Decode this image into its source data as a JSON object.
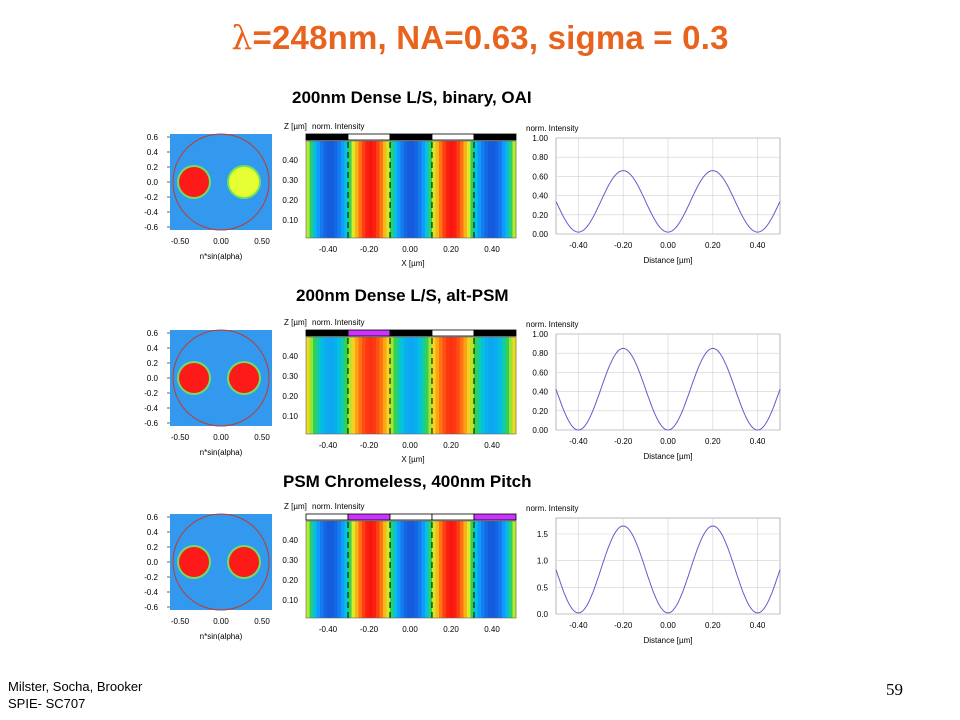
{
  "slide": {
    "title_symbol": "λ",
    "title_rest": "=248nm, NA=0.63, sigma = 0.3",
    "footer_line1": "Milster, Socha, Brooker",
    "footer_line2": "SPIE- SC707",
    "page_number": "59"
  },
  "rows": [
    {
      "title": "200nm Dense L/S, binary, OAI",
      "pupil": {
        "yticks": [
          "0.6",
          "0.4",
          "0.2",
          "0.0",
          "-0.2",
          "-0.4",
          "-0.6"
        ],
        "xticks": [
          "-0.50",
          "0.00",
          "0.50"
        ],
        "xlabel": "n*sin(alpha)",
        "poles": [
          "#ff1a1a",
          "#e6ff33"
        ]
      },
      "aerial": {
        "zlabel": "Z [µm]",
        "clabel": "norm. Intensity",
        "yticks": [
          "0.40",
          "0.30",
          "0.20",
          "0.10"
        ],
        "xticks": [
          "-0.40",
          "-0.20",
          "0.00",
          "0.20",
          "0.40"
        ],
        "xlabel": "X [µm]",
        "mask": [
          "#000000",
          "#ffffff",
          "#000000",
          "#ffffff",
          "#000000"
        ],
        "palette": "binary"
      },
      "chart_data": {
        "type": "line",
        "ylabel": "norm. Intensity",
        "xlabel": "Distance [µm]",
        "yticks": [
          "1.00",
          "0.80",
          "0.60",
          "0.40",
          "0.20",
          "0.00"
        ],
        "ylim": [
          0,
          1.0
        ],
        "xlim": [
          -0.5,
          0.5
        ],
        "xticks": [
          "-0.40",
          "-0.20",
          "0.00",
          "0.20",
          "0.40"
        ],
        "min": 0.02,
        "max": 0.66,
        "period": 0.4,
        "peak": -0.2,
        "grid": true
      }
    },
    {
      "title": "200nm Dense L/S, alt-PSM",
      "pupil": {
        "yticks": [
          "0.6",
          "0.4",
          "0.2",
          "0.0",
          "-0.2",
          "-0.4",
          "-0.6"
        ],
        "xticks": [
          "-0.50",
          "0.00",
          "0.50"
        ],
        "xlabel": "n*sin(alpha)",
        "poles": [
          "#ff1a1a",
          "#ff1a1a"
        ]
      },
      "aerial": {
        "zlabel": "Z [µm]",
        "clabel": "norm. Intensity",
        "yticks": [
          "0.40",
          "0.30",
          "0.20",
          "0.10"
        ],
        "xticks": [
          "-0.40",
          "-0.20",
          "0.00",
          "0.20",
          "0.40"
        ],
        "xlabel": "X [µm]",
        "mask": [
          "#000000",
          "#cc33ff",
          "#000000",
          "#ffffff",
          "#000000"
        ],
        "palette": "psm"
      },
      "chart_data": {
        "type": "line",
        "ylabel": "norm. Intensity",
        "xlabel": "Distance [µm]",
        "yticks": [
          "1.00",
          "0.80",
          "0.60",
          "0.40",
          "0.20",
          "0.00"
        ],
        "ylim": [
          0,
          1.0
        ],
        "xlim": [
          -0.5,
          0.5
        ],
        "xticks": [
          "-0.40",
          "-0.20",
          "0.00",
          "0.20",
          "0.40"
        ],
        "min": 0.0,
        "max": 0.85,
        "period": 0.4,
        "peak": -0.2,
        "grid": true
      }
    },
    {
      "title": "PSM Chromeless, 400nm Pitch",
      "pupil": {
        "yticks": [
          "0.6",
          "0.4",
          "0.2",
          "0.0",
          "-0.2",
          "-0.4",
          "-0.6"
        ],
        "xticks": [
          "-0.50",
          "0.00",
          "0.50"
        ],
        "xlabel": "n*sin(alpha)",
        "poles": [
          "#ff1a1a",
          "#ff1a1a"
        ]
      },
      "aerial": {
        "zlabel": "Z [µm]",
        "clabel": "norm. Intensity",
        "yticks": [
          "0.40",
          "0.30",
          "0.20",
          "0.10"
        ],
        "xticks": [
          "-0.40",
          "-0.20",
          "0.00",
          "0.20",
          "0.40"
        ],
        "xlabel": "",
        "mask": [
          "#ffffff",
          "#cc33ff",
          "#ffffff",
          "#ffffff",
          "#cc33ff"
        ],
        "palette": "chromeless"
      },
      "chart_data": {
        "type": "line",
        "ylabel": "norm. Intensity",
        "xlabel": "Distance [µm]",
        "yticks": [
          "1.5",
          "1.0",
          "0.5",
          "0.0"
        ],
        "ylim": [
          0,
          1.8
        ],
        "xlim": [
          -0.5,
          0.5
        ],
        "xticks": [
          "-0.40",
          "-0.20",
          "0.00",
          "0.20",
          "0.40"
        ],
        "min": 0.02,
        "max": 1.65,
        "period": 0.4,
        "peak": -0.2,
        "grid": true
      }
    }
  ]
}
